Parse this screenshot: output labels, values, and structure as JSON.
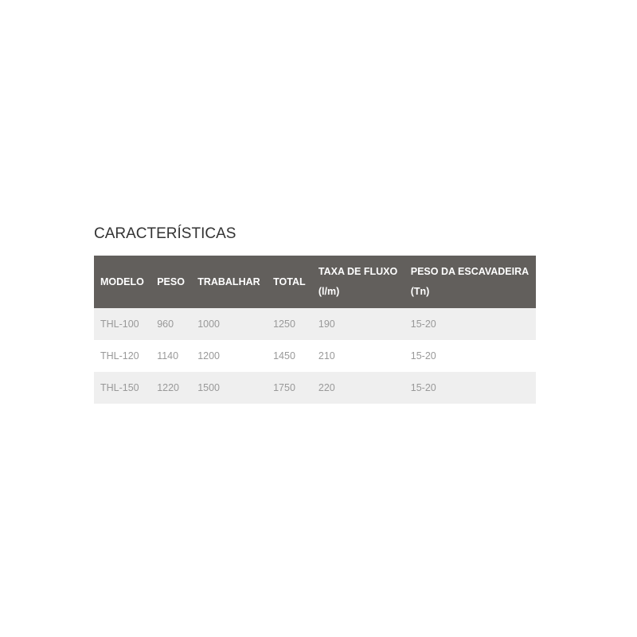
{
  "title": "CARACTERÍSTICAS",
  "headers": [
    [
      "MODELO",
      ""
    ],
    [
      "PESO",
      ""
    ],
    [
      "TRABALHAR",
      ""
    ],
    [
      "TOTAL",
      ""
    ],
    [
      "TAXA DE FLUXO",
      "(l/m)"
    ],
    [
      "PESO DA ESCAVADEIRA",
      "(Tn)"
    ]
  ],
  "rows": [
    [
      "THL-100",
      "960",
      "1000",
      "1250",
      "190",
      "15-20"
    ],
    [
      "THL-120",
      "1140",
      "1200",
      "1450",
      "210",
      "15-20"
    ],
    [
      "THL-150",
      "1220",
      "1500",
      "1750",
      "220",
      "15-20"
    ]
  ]
}
